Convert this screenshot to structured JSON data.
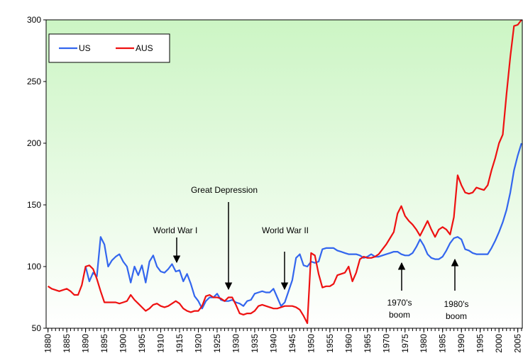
{
  "chart_data": {
    "type": "line",
    "x": [
      1880,
      1881,
      1882,
      1883,
      1884,
      1885,
      1886,
      1887,
      1888,
      1889,
      1890,
      1891,
      1892,
      1893,
      1894,
      1895,
      1896,
      1897,
      1898,
      1899,
      1900,
      1901,
      1902,
      1903,
      1904,
      1905,
      1906,
      1907,
      1908,
      1909,
      1910,
      1911,
      1912,
      1913,
      1914,
      1915,
      1916,
      1917,
      1918,
      1919,
      1920,
      1921,
      1922,
      1923,
      1924,
      1925,
      1926,
      1927,
      1928,
      1929,
      1930,
      1931,
      1932,
      1933,
      1934,
      1935,
      1936,
      1937,
      1938,
      1939,
      1940,
      1941,
      1942,
      1943,
      1944,
      1945,
      1946,
      1947,
      1948,
      1949,
      1950,
      1951,
      1952,
      1953,
      1954,
      1955,
      1956,
      1957,
      1958,
      1959,
      1960,
      1961,
      1962,
      1963,
      1964,
      1965,
      1966,
      1967,
      1968,
      1969,
      1970,
      1971,
      1972,
      1973,
      1974,
      1975,
      1976,
      1977,
      1978,
      1979,
      1980,
      1981,
      1982,
      1983,
      1984,
      1985,
      1986,
      1987,
      1988,
      1989,
      1990,
      1991,
      1992,
      1993,
      1994,
      1995,
      1996,
      1997,
      1998,
      1999,
      2000,
      2001,
      2002,
      2003,
      2004,
      2005,
      2006
    ],
    "series": [
      {
        "name": "US",
        "color": "#3366ee",
        "values": [
          null,
          null,
          null,
          null,
          null,
          null,
          null,
          null,
          null,
          null,
          100,
          88,
          95,
          92,
          124,
          118,
          100,
          105,
          108,
          110,
          104,
          100,
          87,
          100,
          93,
          101,
          87,
          104,
          109,
          100,
          96,
          95,
          98,
          102,
          96,
          97,
          88,
          94,
          86,
          76,
          72,
          66,
          72,
          75,
          75,
          78,
          73,
          72,
          72,
          73,
          71,
          70,
          68,
          72,
          73,
          78,
          79,
          80,
          79,
          79,
          82,
          75,
          68,
          71,
          80,
          89,
          107,
          110,
          101,
          100,
          104,
          103,
          104,
          114,
          115,
          115,
          115,
          113,
          112,
          111,
          110,
          110,
          110,
          109,
          107,
          108,
          110,
          108,
          108,
          109,
          110,
          111,
          112,
          112,
          110,
          109,
          109,
          111,
          116,
          122,
          117,
          110,
          107,
          106,
          106,
          108,
          113,
          119,
          123,
          124,
          122,
          114,
          113,
          111,
          110,
          110,
          110,
          110,
          115,
          121,
          128,
          136,
          146,
          160,
          178,
          190,
          200
        ]
      },
      {
        "name": "AUS",
        "color": "#ee1111",
        "values": [
          84,
          82,
          81,
          80,
          81,
          82,
          80,
          77,
          77,
          85,
          100,
          101,
          98,
          90,
          80,
          71,
          71,
          71,
          71,
          70,
          71,
          72,
          77,
          73,
          70,
          67,
          64,
          66,
          69,
          70,
          68,
          67,
          68,
          70,
          72,
          70,
          66,
          64,
          63,
          64,
          64,
          68,
          76,
          77,
          75,
          75,
          74,
          72,
          75,
          75,
          69,
          62,
          61,
          62,
          62,
          64,
          68,
          69,
          68,
          67,
          66,
          66,
          67,
          68,
          68,
          68,
          67,
          65,
          60,
          54,
          111,
          109,
          94,
          83,
          84,
          84,
          86,
          93,
          94,
          95,
          100,
          88,
          95,
          106,
          108,
          107,
          107,
          108,
          110,
          114,
          118,
          123,
          128,
          143,
          149,
          141,
          137,
          134,
          130,
          125,
          131,
          137,
          130,
          124,
          130,
          132,
          130,
          126,
          140,
          174,
          166,
          160,
          159,
          160,
          164,
          163,
          162,
          166,
          178,
          188,
          200,
          207,
          240,
          270,
          295,
          296,
          300
        ]
      }
    ],
    "xlim": [
      1879.5,
      2006.2
    ],
    "xticks": [
      1880,
      1885,
      1890,
      1895,
      1900,
      1905,
      1910,
      1915,
      1920,
      1925,
      1930,
      1935,
      1940,
      1945,
      1950,
      1955,
      1960,
      1965,
      1970,
      1975,
      1980,
      1985,
      1990,
      1995,
      2000,
      2005
    ],
    "ylim": [
      50,
      300
    ],
    "yticks": [
      50,
      100,
      150,
      200,
      250,
      300
    ],
    "legend": "upper left",
    "annotations": [
      {
        "lines": [
          "World War I"
        ]
      },
      {
        "lines": [
          "Great Depression"
        ]
      },
      {
        "lines": [
          "World War II"
        ]
      },
      {
        "lines": [
          "1970's",
          "boom"
        ]
      },
      {
        "lines": [
          "1980's",
          "boom"
        ]
      }
    ]
  }
}
